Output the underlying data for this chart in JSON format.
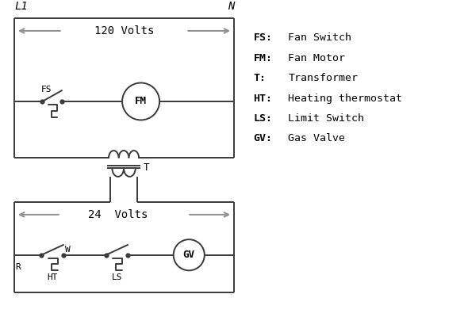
{
  "bg_color": "#ffffff",
  "line_color": "#3a3a3a",
  "arrow_color": "#909090",
  "legend": [
    [
      "FS:",
      "Fan Switch"
    ],
    [
      "FM:",
      "Fan Motor"
    ],
    [
      "T:",
      "Transformer"
    ],
    [
      "HT:",
      "Heating thermostat"
    ],
    [
      "LS:",
      "Limit Switch"
    ],
    [
      "GV:",
      "Gas Valve"
    ]
  ],
  "volts120_label": "120 Volts",
  "volts24_label": "24  Volts",
  "L1_label": "L1",
  "N_label": "N"
}
